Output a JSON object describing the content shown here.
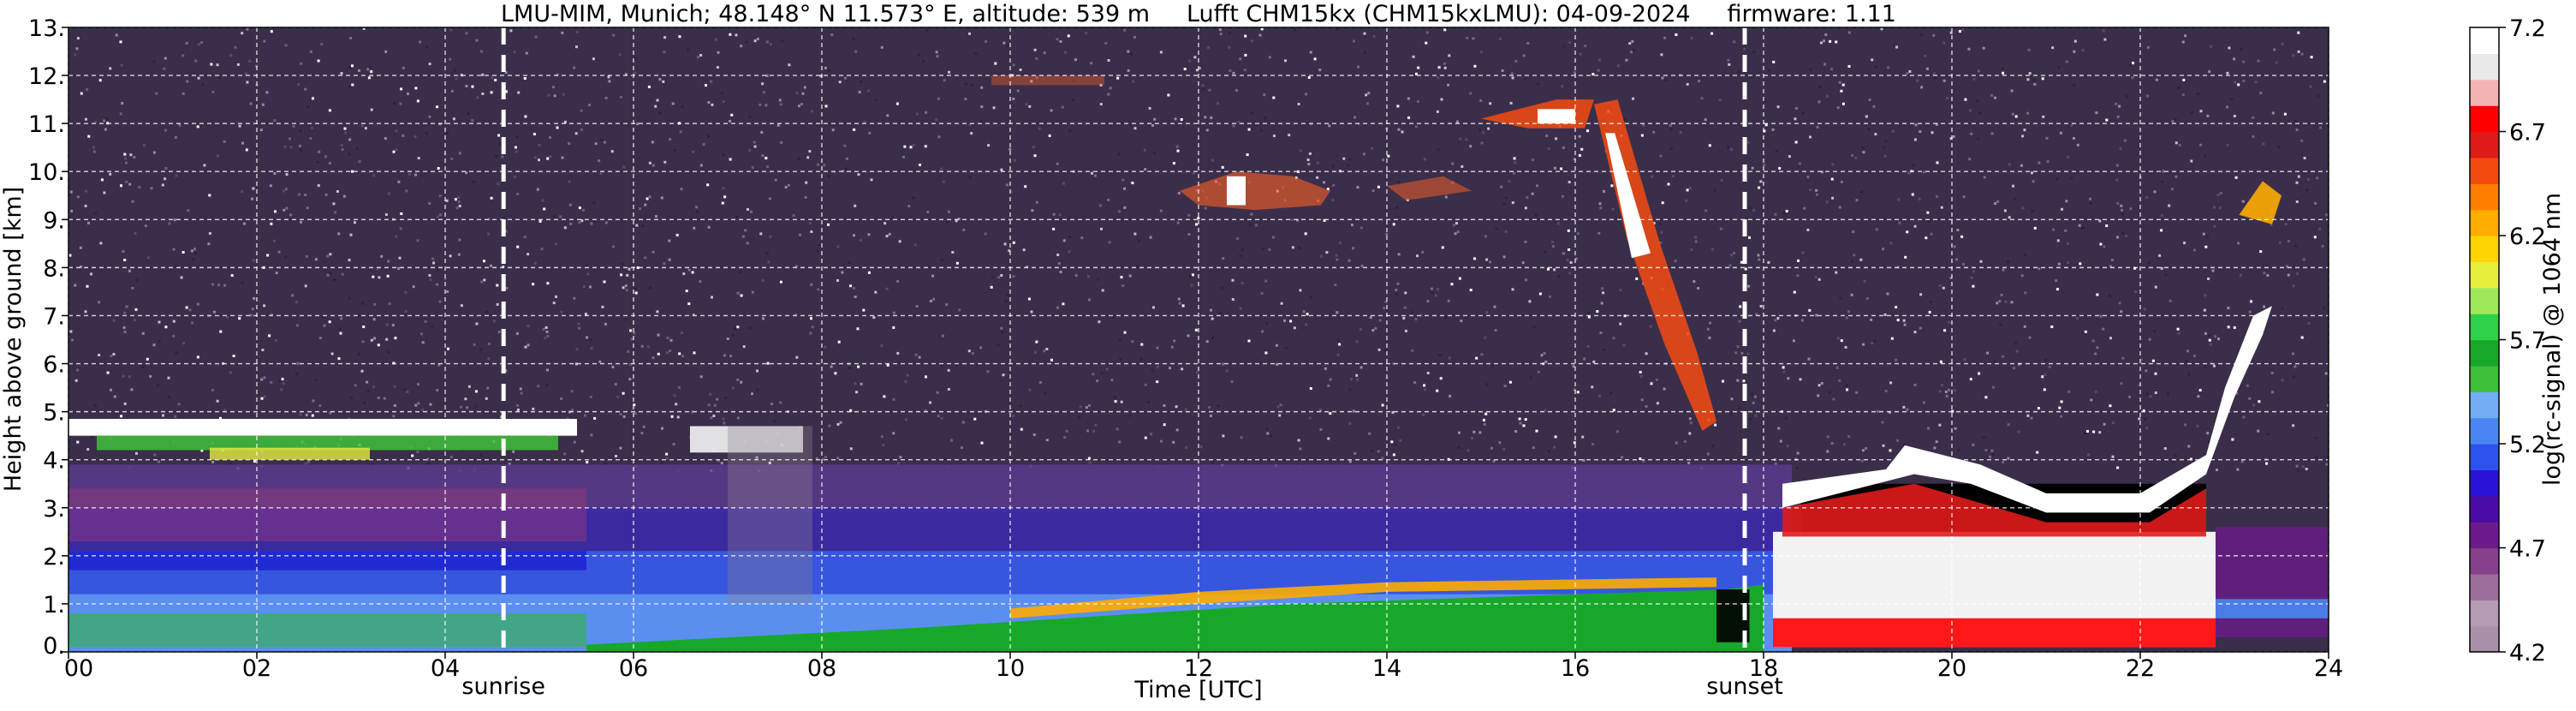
{
  "chart_data": {
    "type": "heatmap",
    "title": "LMU-MIM, Munich; 48.148° N 11.573° E, altitude: 539 m     Lufft CHM15kx (CHM15kxLMU): 04-09-2024     firmware: 1.11",
    "xlabel": "Time [UTC]",
    "ylabel": "Height above ground [km]",
    "colorbar_label": "log(rc-signal) @ 1064 nm",
    "xlim": [
      0,
      24
    ],
    "ylim": [
      0,
      13
    ],
    "x_ticks": [
      0,
      2,
      4,
      6,
      8,
      10,
      12,
      14,
      16,
      18,
      20,
      22,
      24
    ],
    "x_tick_labels": [
      "00",
      "02",
      "04",
      "06",
      "08",
      "10",
      "12",
      "14",
      "16",
      "18",
      "20",
      "22",
      "24"
    ],
    "y_ticks": [
      0,
      1,
      2,
      3,
      4,
      5,
      6,
      7,
      8,
      9,
      10,
      11,
      12,
      13
    ],
    "y_tick_labels": [
      "0.",
      "1.",
      "2.",
      "3.",
      "4.",
      "5.",
      "6.",
      "7.",
      "8.",
      "9.",
      "10.",
      "11.",
      "12.",
      "13."
    ],
    "grid": true,
    "colorbar": {
      "range": [
        4.2,
        7.2
      ],
      "ticks": [
        4.2,
        4.7,
        5.2,
        5.7,
        6.2,
        6.7,
        7.2
      ],
      "tick_labels": [
        "4.2",
        "4.7",
        "5.2",
        "5.7",
        "6.2",
        "6.7",
        "7.2"
      ],
      "colors": [
        "#a990a8",
        "#b59cb5",
        "#9b6e9b",
        "#86408c",
        "#6b1c8a",
        "#4a0ba6",
        "#2b12d8",
        "#2d52ee",
        "#4a86f3",
        "#73aef5",
        "#3fbe3a",
        "#17a82a",
        "#2cd24a",
        "#9fe85a",
        "#e6ee3c",
        "#ffd300",
        "#ffac00",
        "#ff7e00",
        "#f44a10",
        "#e11a1a",
        "#ff0000",
        "#f4b3b3",
        "#e9e9e9",
        "#ffffff"
      ]
    },
    "annotations": [
      {
        "text": "sunrise",
        "x": 4.62
      },
      {
        "text": "sunset",
        "x": 17.8
      }
    ],
    "features": [
      {
        "name": "boundary-layer",
        "x0": 0,
        "x1": 18.3,
        "y0": 0,
        "y1": 3.8
      },
      {
        "name": "low-cloud-layer",
        "x0": 0,
        "x1": 5.4,
        "y0": 4.45,
        "y1": 4.85
      },
      {
        "name": "cirrus",
        "x0": 11.8,
        "x1": 13.4,
        "y0": 9.2,
        "y1": 10.2
      },
      {
        "name": "cirrus",
        "x0": 15.0,
        "x1": 16.2,
        "y0": 10.8,
        "y1": 11.6
      },
      {
        "name": "cloud-deck",
        "x0": 18.2,
        "x1": 22.8,
        "y0": 0.1,
        "y1": 4.1
      },
      {
        "name": "elevated-cloud",
        "x0": 23.0,
        "x1": 23.5,
        "y0": 8.9,
        "y1": 9.9
      }
    ]
  }
}
